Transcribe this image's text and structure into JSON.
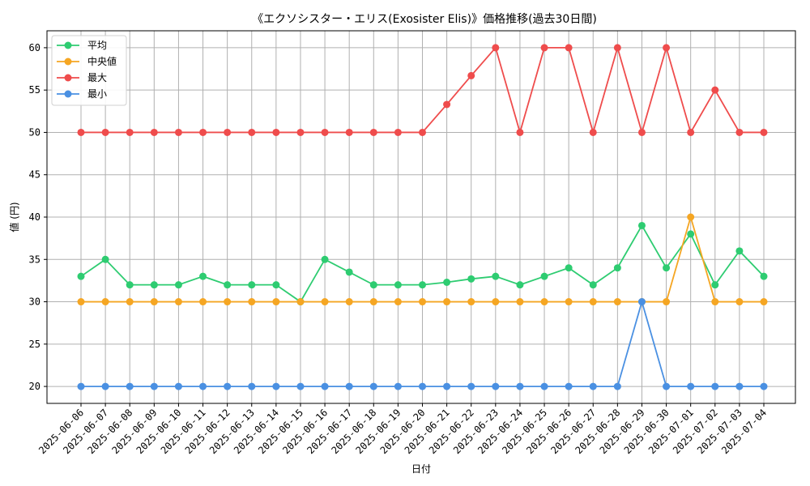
{
  "chart_data": {
    "type": "line",
    "title": "《エクソシスター・エリス(Exosister Elis)》価格推移(過去30日間)",
    "xlabel": "日付",
    "ylabel": "値 (円)",
    "ylim": [
      18,
      62
    ],
    "yticks": [
      20,
      25,
      30,
      35,
      40,
      45,
      50,
      55,
      60
    ],
    "grid": true,
    "legend_position": "top-left",
    "categories": [
      "2025-06-06",
      "2025-06-07",
      "2025-06-08",
      "2025-06-09",
      "2025-06-10",
      "2025-06-11",
      "2025-06-12",
      "2025-06-13",
      "2025-06-14",
      "2025-06-15",
      "2025-06-16",
      "2025-06-17",
      "2025-06-18",
      "2025-06-19",
      "2025-06-20",
      "2025-06-21",
      "2025-06-22",
      "2025-06-23",
      "2025-06-24",
      "2025-06-25",
      "2025-06-26",
      "2025-06-27",
      "2025-06-28",
      "2025-06-29",
      "2025-06-30",
      "2025-07-01",
      "2025-07-02",
      "2025-07-03",
      "2025-07-04"
    ],
    "series": [
      {
        "name": "平均",
        "color": "#2ecc71",
        "values": [
          33,
          35,
          32,
          32,
          32,
          33,
          32,
          32,
          32,
          30,
          35,
          33.5,
          32,
          32,
          32,
          32.3,
          32.7,
          33,
          32,
          33,
          34,
          32,
          34,
          39,
          34,
          38,
          32,
          36,
          33
        ]
      },
      {
        "name": "中央値",
        "color": "#f5a623",
        "values": [
          30,
          30,
          30,
          30,
          30,
          30,
          30,
          30,
          30,
          30,
          30,
          30,
          30,
          30,
          30,
          30,
          30,
          30,
          30,
          30,
          30,
          30,
          30,
          30,
          30,
          40,
          30,
          30,
          30
        ]
      },
      {
        "name": "最大",
        "color": "#ef4c4c",
        "values": [
          50,
          50,
          50,
          50,
          50,
          50,
          50,
          50,
          50,
          50,
          50,
          50,
          50,
          50,
          50,
          53.3,
          56.7,
          60,
          50,
          60,
          60,
          50,
          60,
          50,
          60,
          50,
          55,
          50,
          50
        ]
      },
      {
        "name": "最小",
        "color": "#4a90e2",
        "values": [
          20,
          20,
          20,
          20,
          20,
          20,
          20,
          20,
          20,
          20,
          20,
          20,
          20,
          20,
          20,
          20,
          20,
          20,
          20,
          20,
          20,
          20,
          20,
          30,
          20,
          20,
          20,
          20,
          20
        ]
      }
    ]
  }
}
